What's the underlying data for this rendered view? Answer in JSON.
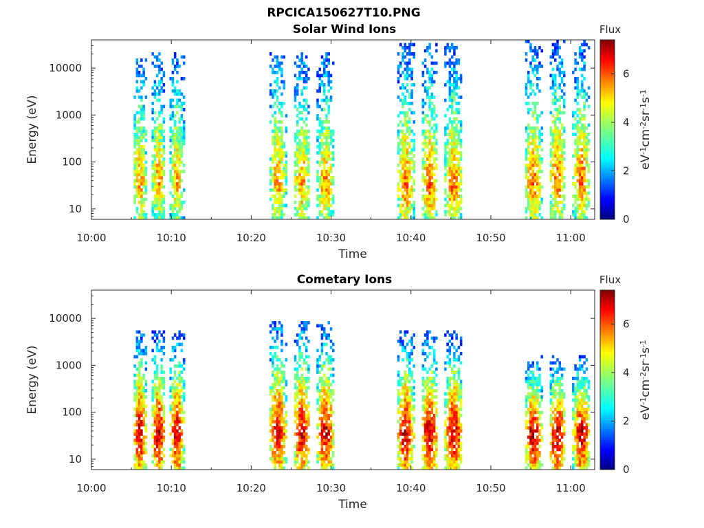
{
  "figure": {
    "title": "RPCICA150627T10.PNG"
  },
  "chart_data": [
    {
      "type": "heatmap",
      "title": "Solar Wind Ions",
      "xlabel": "Time",
      "ylabel": "Energy (eV)",
      "x_range": [
        "10:00",
        "11:03"
      ],
      "x_ticks": [
        "10:00",
        "10:10",
        "10:20",
        "10:30",
        "10:40",
        "10:50",
        "11:00"
      ],
      "y_scale": "log",
      "y_range": [
        6,
        40000
      ],
      "y_ticks": [
        "10",
        "100",
        "1000",
        "10000"
      ],
      "colorbar": {
        "title": "Flux",
        "label": "eV⁻¹cm⁻²sr⁻¹s⁻¹",
        "label_base": [
          "eV",
          "cm",
          "sr",
          "s"
        ],
        "label_exp": [
          "-1",
          "-2",
          "-1",
          "-1"
        ],
        "range": [
          0,
          7.4
        ],
        "ticks": [
          "0",
          "2",
          "4",
          "6"
        ],
        "colormap": "jet"
      },
      "bursts": [
        {
          "start": "10:05",
          "end": "10:12",
          "peak_energy_eV": 35,
          "peak_flux": 5.5,
          "max_energy_eV": 20000
        },
        {
          "start": "10:22",
          "end": "10:31",
          "peak_energy_eV": 30,
          "peak_flux": 5.5,
          "max_energy_eV": 20000
        },
        {
          "start": "10:38",
          "end": "10:47",
          "peak_energy_eV": 28,
          "peak_flux": 5.8,
          "max_energy_eV": 30000
        },
        {
          "start": "10:54",
          "end": "11:03",
          "peak_energy_eV": 35,
          "peak_flux": 5.8,
          "max_energy_eV": 35000
        }
      ]
    },
    {
      "type": "heatmap",
      "title": "Cometary Ions",
      "xlabel": "Time",
      "ylabel": "Energy (eV)",
      "x_range": [
        "10:00",
        "11:03"
      ],
      "x_ticks": [
        "10:00",
        "10:10",
        "10:20",
        "10:30",
        "10:40",
        "10:50",
        "11:00"
      ],
      "y_scale": "log",
      "y_range": [
        6,
        40000
      ],
      "y_ticks": [
        "10",
        "100",
        "1000",
        "10000"
      ],
      "colorbar": {
        "title": "Flux",
        "label": "eV⁻¹cm⁻²sr⁻¹s⁻¹",
        "label_base": [
          "eV",
          "cm",
          "sr",
          "s"
        ],
        "label_exp": [
          "-1",
          "-2",
          "-1",
          "-1"
        ],
        "range": [
          0,
          7.4
        ],
        "ticks": [
          "0",
          "2",
          "4",
          "6"
        ],
        "colormap": "jet"
      },
      "bursts": [
        {
          "start": "10:05",
          "end": "10:12",
          "peak_energy_eV": 35,
          "peak_flux": 7.0,
          "max_energy_eV": 5000
        },
        {
          "start": "10:22",
          "end": "10:31",
          "peak_energy_eV": 35,
          "peak_flux": 6.8,
          "max_energy_eV": 8000
        },
        {
          "start": "10:38",
          "end": "10:47",
          "peak_energy_eV": 35,
          "peak_flux": 7.0,
          "max_energy_eV": 5000
        },
        {
          "start": "10:54",
          "end": "11:03",
          "peak_energy_eV": 35,
          "peak_flux": 7.0,
          "max_energy_eV": 1500
        }
      ]
    }
  ]
}
